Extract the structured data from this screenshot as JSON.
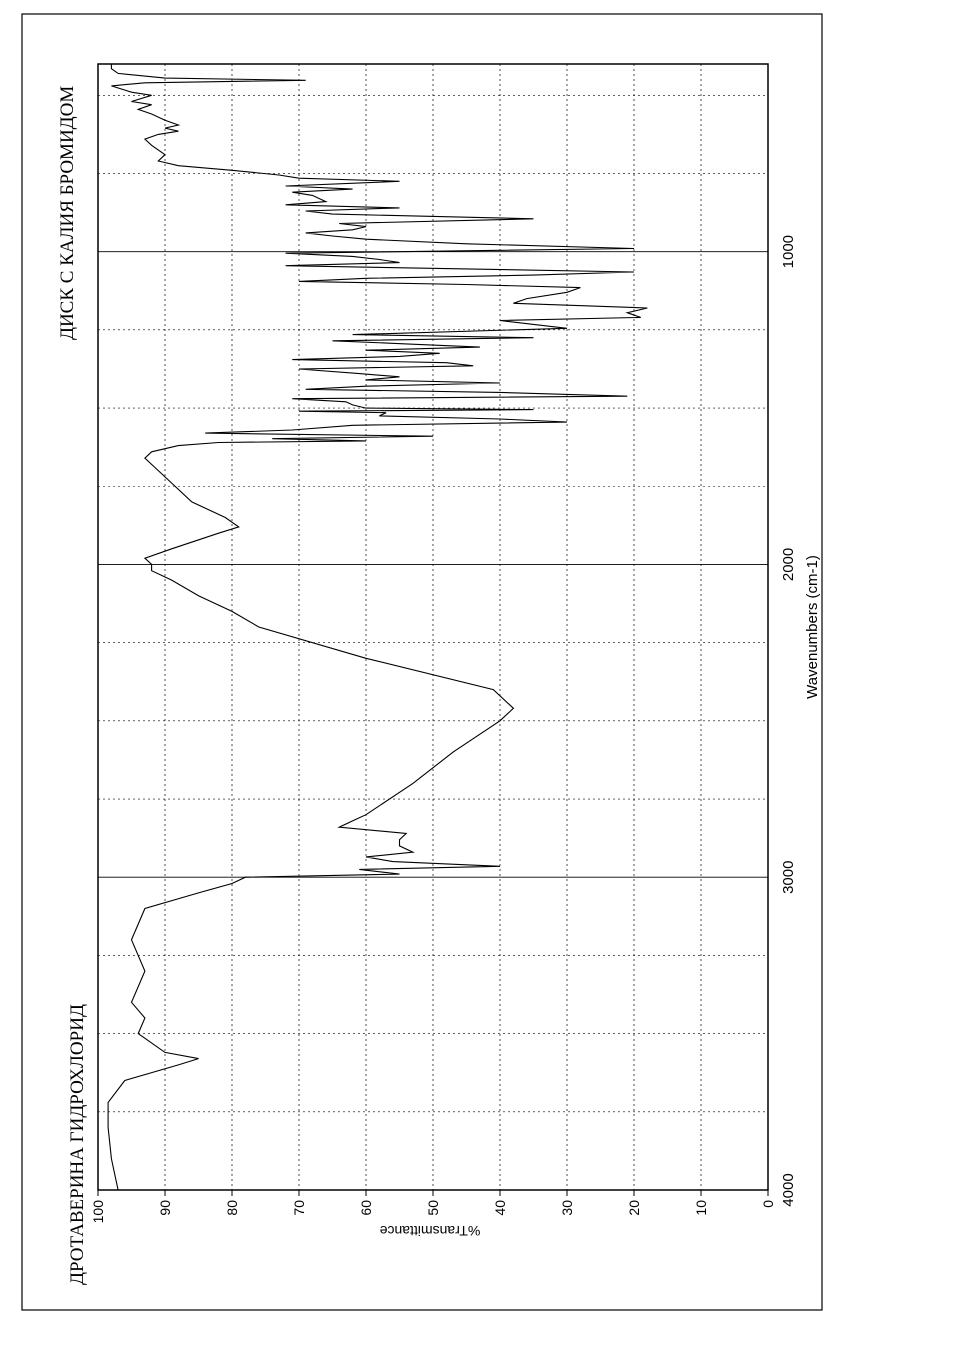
{
  "chart_data": {
    "type": "line",
    "title_left": "ДРОТАВЕРИНА ГИДРОХЛОРИД",
    "title_right": "ДИСК С КАЛИЯ БРОМИДОМ",
    "xlabel": "Wavenumbers (cm-1)",
    "ylabel": "%Transmittance",
    "xlim": [
      4000,
      400
    ],
    "ylim": [
      0,
      100
    ],
    "x_ticks": [
      4000,
      3000,
      2000,
      1000
    ],
    "y_ticks": [
      0,
      10,
      20,
      30,
      40,
      50,
      60,
      70,
      80,
      90,
      100
    ],
    "grid": true,
    "series": [
      {
        "values": [
          [
            4000,
            97
          ],
          [
            3900,
            98
          ],
          [
            3800,
            98.5
          ],
          [
            3720,
            98.5
          ],
          [
            3650,
            96
          ],
          [
            3600,
            88
          ],
          [
            3580,
            85
          ],
          [
            3560,
            90
          ],
          [
            3500,
            94
          ],
          [
            3450,
            93
          ],
          [
            3400,
            95
          ],
          [
            3300,
            93
          ],
          [
            3200,
            95
          ],
          [
            3100,
            93
          ],
          [
            3050,
            85
          ],
          [
            3020,
            80
          ],
          [
            3000,
            78
          ],
          [
            2990,
            55
          ],
          [
            2975,
            61
          ],
          [
            2965,
            40
          ],
          [
            2950,
            56
          ],
          [
            2935,
            60
          ],
          [
            2920,
            53
          ],
          [
            2900,
            55
          ],
          [
            2880,
            55
          ],
          [
            2860,
            54
          ],
          [
            2840,
            64
          ],
          [
            2820,
            62
          ],
          [
            2800,
            60
          ],
          [
            2700,
            53
          ],
          [
            2600,
            47
          ],
          [
            2500,
            40
          ],
          [
            2460,
            38
          ],
          [
            2400,
            41
          ],
          [
            2300,
            60
          ],
          [
            2200,
            76
          ],
          [
            2150,
            80
          ],
          [
            2100,
            85
          ],
          [
            2050,
            89
          ],
          [
            2020,
            92
          ],
          [
            2000,
            92
          ],
          [
            1980,
            93
          ],
          [
            1950,
            89
          ],
          [
            1900,
            82
          ],
          [
            1880,
            79
          ],
          [
            1850,
            81
          ],
          [
            1800,
            86
          ],
          [
            1700,
            91
          ],
          [
            1660,
            93
          ],
          [
            1640,
            92
          ],
          [
            1620,
            88
          ],
          [
            1610,
            82
          ],
          [
            1605,
            60
          ],
          [
            1598,
            74
          ],
          [
            1590,
            50
          ],
          [
            1580,
            84
          ],
          [
            1570,
            71
          ],
          [
            1555,
            62
          ],
          [
            1545,
            30
          ],
          [
            1535,
            40
          ],
          [
            1525,
            58
          ],
          [
            1515,
            57
          ],
          [
            1510,
            70
          ],
          [
            1505,
            35
          ],
          [
            1500,
            60
          ],
          [
            1490,
            62
          ],
          [
            1480,
            63
          ],
          [
            1470,
            71
          ],
          [
            1462,
            21
          ],
          [
            1450,
            40
          ],
          [
            1440,
            69
          ],
          [
            1430,
            60
          ],
          [
            1420,
            40
          ],
          [
            1410,
            60
          ],
          [
            1400,
            55
          ],
          [
            1390,
            61
          ],
          [
            1375,
            70
          ],
          [
            1365,
            44
          ],
          [
            1355,
            48
          ],
          [
            1345,
            71
          ],
          [
            1335,
            55
          ],
          [
            1325,
            49
          ],
          [
            1315,
            60
          ],
          [
            1305,
            43
          ],
          [
            1295,
            54
          ],
          [
            1285,
            65
          ],
          [
            1275,
            35
          ],
          [
            1265,
            62
          ],
          [
            1245,
            30
          ],
          [
            1220,
            40
          ],
          [
            1210,
            19
          ],
          [
            1195,
            21
          ],
          [
            1180,
            18
          ],
          [
            1165,
            38
          ],
          [
            1150,
            36
          ],
          [
            1130,
            30
          ],
          [
            1115,
            28
          ],
          [
            1105,
            45
          ],
          [
            1095,
            70
          ],
          [
            1085,
            60
          ],
          [
            1075,
            35
          ],
          [
            1065,
            20
          ],
          [
            1055,
            45
          ],
          [
            1045,
            72
          ],
          [
            1035,
            55
          ],
          [
            1025,
            58
          ],
          [
            1015,
            62
          ],
          [
            1005,
            72
          ],
          [
            990,
            20
          ],
          [
            975,
            45
          ],
          [
            960,
            60
          ],
          [
            950,
            65
          ],
          [
            940,
            69
          ],
          [
            930,
            62
          ],
          [
            920,
            60
          ],
          [
            910,
            64
          ],
          [
            895,
            35
          ],
          [
            880,
            65
          ],
          [
            870,
            69
          ],
          [
            860,
            55
          ],
          [
            850,
            72
          ],
          [
            840,
            66
          ],
          [
            820,
            68
          ],
          [
            810,
            71
          ],
          [
            800,
            62
          ],
          [
            790,
            72
          ],
          [
            775,
            55
          ],
          [
            765,
            70
          ],
          [
            755,
            73
          ],
          [
            740,
            80
          ],
          [
            725,
            88
          ],
          [
            710,
            91
          ],
          [
            690,
            90
          ],
          [
            660,
            92
          ],
          [
            640,
            93
          ],
          [
            625,
            91
          ],
          [
            615,
            88
          ],
          [
            605,
            90
          ],
          [
            595,
            88
          ],
          [
            580,
            90
          ],
          [
            560,
            92
          ],
          [
            545,
            94
          ],
          [
            530,
            92
          ],
          [
            520,
            95
          ],
          [
            500,
            92
          ],
          [
            490,
            95
          ],
          [
            470,
            98
          ],
          [
            460,
            93
          ],
          [
            452,
            69
          ],
          [
            445,
            90
          ],
          [
            430,
            97
          ],
          [
            415,
            98
          ],
          [
            400,
            98
          ]
        ]
      }
    ]
  },
  "colors": {
    "ink": "#000000",
    "grid": "#000000",
    "background": "#ffffff"
  }
}
